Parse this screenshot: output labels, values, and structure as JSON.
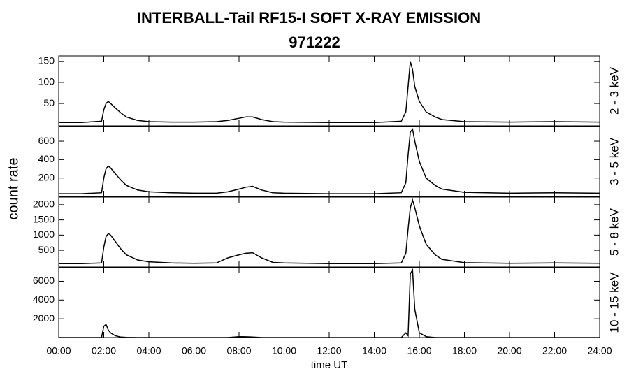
{
  "chart_data": {
    "type": "line",
    "title": "INTERBALL-Tail RF15-I SOFT X-RAY EMISSION",
    "subtitle": "971222",
    "x_label": "time UT",
    "y_label": "count rate",
    "color": "#000000",
    "x": [
      0,
      1,
      1.9,
      2.0,
      2.1,
      2.2,
      2.3,
      2.5,
      2.75,
      3,
      3.5,
      4,
      5,
      6,
      7,
      7.5,
      8,
      8.3,
      8.6,
      9,
      9.5,
      10,
      12,
      14,
      15.2,
      15.4,
      15.5,
      15.6,
      15.7,
      15.8,
      16,
      16.3,
      16.7,
      17,
      18,
      20,
      22,
      24
    ],
    "xlim": [
      0,
      24
    ],
    "xticks": [
      {
        "value": 0,
        "label": "00:00"
      },
      {
        "value": 2,
        "label": "02:00"
      },
      {
        "value": 4,
        "label": "04:00"
      },
      {
        "value": 6,
        "label": "06:00"
      },
      {
        "value": 8,
        "label": "08:00"
      },
      {
        "value": 10,
        "label": "10:00"
      },
      {
        "value": 12,
        "label": "12:00"
      },
      {
        "value": 14,
        "label": "14:00"
      },
      {
        "value": 16,
        "label": "16:00"
      },
      {
        "value": 18,
        "label": "18:00"
      },
      {
        "value": 20,
        "label": "20:00"
      },
      {
        "value": 22,
        "label": "22:00"
      },
      {
        "value": 24,
        "label": "24:00"
      }
    ],
    "panels": [
      {
        "name": "2 - 3 keV",
        "ylim": [
          -3,
          163
        ],
        "yticks": [
          50,
          100,
          150
        ],
        "values": [
          5,
          5,
          8,
          35,
          50,
          55,
          50,
          40,
          28,
          18,
          10,
          7,
          6,
          6,
          7,
          10,
          15,
          18,
          18,
          12,
          7,
          6,
          5,
          5,
          8,
          30,
          90,
          150,
          130,
          90,
          55,
          30,
          18,
          12,
          7,
          6,
          7,
          6
        ]
      },
      {
        "name": "3 - 5 keV",
        "ylim": [
          0,
          760
        ],
        "yticks": [
          200,
          400,
          600
        ],
        "values": [
          30,
          30,
          40,
          200,
          300,
          330,
          310,
          250,
          180,
          120,
          70,
          50,
          40,
          35,
          35,
          50,
          80,
          100,
          110,
          70,
          40,
          35,
          30,
          30,
          40,
          150,
          450,
          700,
          730,
          600,
          380,
          200,
          120,
          80,
          45,
          35,
          40,
          35
        ]
      },
      {
        "name": "5 - 8 keV",
        "ylim": [
          -50,
          2250
        ],
        "yticks": [
          500,
          1000,
          1500,
          2000
        ],
        "values": [
          60,
          60,
          80,
          600,
          950,
          1050,
          1000,
          800,
          550,
          350,
          180,
          120,
          80,
          70,
          80,
          250,
          350,
          400,
          420,
          250,
          100,
          80,
          60,
          60,
          80,
          400,
          1200,
          1900,
          2150,
          1900,
          1300,
          700,
          350,
          200,
          90,
          70,
          80,
          70
        ]
      },
      {
        "name": "10 - 15 keV",
        "ylim": [
          0,
          7450
        ],
        "yticks": [
          2000,
          4000,
          6000
        ],
        "values": [
          0,
          0,
          0,
          1200,
          1400,
          800,
          500,
          200,
          50,
          20,
          0,
          0,
          0,
          0,
          0,
          0,
          100,
          80,
          50,
          0,
          0,
          0,
          0,
          0,
          0,
          500,
          200,
          6800,
          7200,
          3000,
          500,
          100,
          0,
          0,
          0,
          0,
          0,
          0
        ]
      }
    ]
  }
}
